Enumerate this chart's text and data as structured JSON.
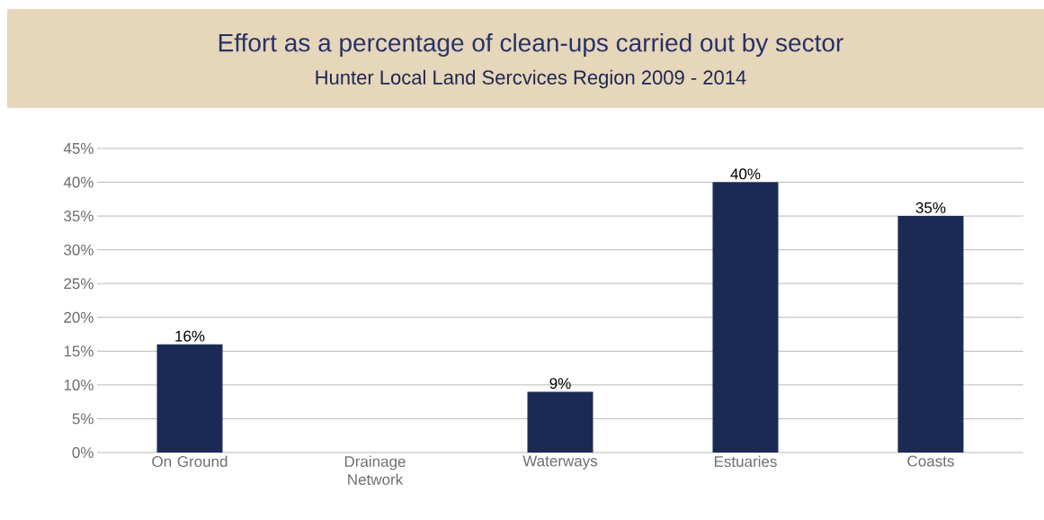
{
  "chart_data": {
    "type": "bar",
    "title": "Effort as a percentage of clean-ups carried out by sector",
    "subtitle": "Hunter Local Land Sercvices Region 2009 - 2014",
    "categories": [
      "On Ground",
      "Drainage Network",
      "Waterways",
      "Estuaries",
      "Coasts"
    ],
    "values": [
      16,
      0,
      9,
      40,
      35
    ],
    "value_labels": [
      "16%",
      null,
      "9%",
      "40%",
      "35%"
    ],
    "color": "#1b2a55",
    "ylim": [
      0,
      45
    ],
    "yticks": [
      {
        "value": 0,
        "label": "0%"
      },
      {
        "value": 5,
        "label": "5%"
      },
      {
        "value": 10,
        "label": "10%"
      },
      {
        "value": 15,
        "label": "15%"
      },
      {
        "value": 20,
        "label": "20%"
      },
      {
        "value": 25,
        "label": "25%"
      },
      {
        "value": 30,
        "label": "30%"
      },
      {
        "value": 35,
        "label": "35%"
      },
      {
        "value": 40,
        "label": "40%"
      },
      {
        "value": 45,
        "label": "45%"
      }
    ],
    "grid": "y"
  }
}
